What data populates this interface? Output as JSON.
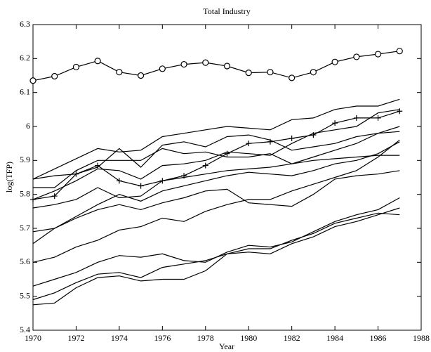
{
  "chart_data": {
    "type": "line",
    "title": "Total Industry",
    "xlabel": "Year",
    "ylabel": "log(TFP)",
    "x": [
      1970,
      1971,
      1972,
      1973,
      1974,
      1975,
      1976,
      1977,
      1978,
      1979,
      1980,
      1981,
      1982,
      1983,
      1984,
      1985,
      1986,
      1987
    ],
    "xlim": [
      1970,
      1988
    ],
    "xticks": [
      1970,
      1972,
      1974,
      1976,
      1978,
      1980,
      1982,
      1984,
      1986,
      1988
    ],
    "ylim": [
      5.4,
      6.3
    ],
    "yticks": [
      5.4,
      5.5,
      5.6,
      5.7,
      5.8,
      5.9,
      6,
      6.1,
      6.2,
      6.3
    ],
    "grid": false,
    "series": [
      {
        "color": "#000000",
        "marker": "o",
        "values": [
          6.135,
          6.148,
          6.175,
          6.193,
          6.16,
          6.15,
          6.17,
          6.183,
          6.188,
          6.178,
          6.158,
          6.16,
          6.143,
          6.16,
          6.19,
          6.205,
          6.213,
          6.222
        ]
      },
      {
        "color": "#000000",
        "marker": "+",
        "values": [
          5.785,
          5.795,
          5.86,
          5.885,
          5.84,
          5.825,
          5.84,
          5.855,
          5.885,
          5.92,
          5.95,
          5.955,
          5.965,
          5.975,
          6.01,
          6.025,
          6.025,
          6.045
        ]
      },
      {
        "color": "#000000",
        "values": [
          5.845,
          5.875,
          5.905,
          5.935,
          5.925,
          5.93,
          5.97,
          5.98,
          5.99,
          6.0,
          5.995,
          5.99,
          6.02,
          6.025,
          6.05,
          6.06,
          6.06,
          6.08
        ]
      },
      {
        "color": "#000000",
        "values": [
          5.845,
          5.855,
          5.86,
          5.88,
          5.935,
          5.88,
          5.945,
          5.955,
          5.94,
          5.97,
          5.975,
          5.96,
          5.93,
          5.94,
          5.95,
          5.97,
          5.98,
          6.0
        ]
      },
      {
        "color": "#000000",
        "values": [
          5.82,
          5.82,
          5.87,
          5.9,
          5.9,
          5.9,
          5.935,
          5.92,
          5.925,
          5.91,
          5.91,
          5.92,
          5.89,
          5.91,
          5.93,
          5.95,
          5.98,
          5.985
        ]
      },
      {
        "color": "#000000",
        "values": [
          5.785,
          5.81,
          5.84,
          5.875,
          5.87,
          5.845,
          5.885,
          5.89,
          5.9,
          5.925,
          5.92,
          5.915,
          5.95,
          5.98,
          5.99,
          6.0,
          6.04,
          6.05
        ]
      },
      {
        "color": "#000000",
        "values": [
          5.76,
          5.77,
          5.785,
          5.82,
          5.79,
          5.795,
          5.84,
          5.85,
          5.86,
          5.87,
          5.875,
          5.88,
          5.89,
          5.9,
          5.905,
          5.91,
          5.915,
          5.915
        ]
      },
      {
        "color": "#000000",
        "values": [
          5.69,
          5.7,
          5.73,
          5.755,
          5.77,
          5.755,
          5.775,
          5.79,
          5.81,
          5.815,
          5.775,
          5.77,
          5.765,
          5.8,
          5.845,
          5.855,
          5.86,
          5.87
        ]
      },
      {
        "color": "#000000",
        "values": [
          5.655,
          5.7,
          5.735,
          5.77,
          5.8,
          5.78,
          5.81,
          5.825,
          5.84,
          5.855,
          5.865,
          5.86,
          5.855,
          5.87,
          5.89,
          5.9,
          5.92,
          5.955
        ]
      },
      {
        "color": "#000000",
        "values": [
          5.6,
          5.615,
          5.645,
          5.665,
          5.695,
          5.705,
          5.73,
          5.72,
          5.75,
          5.77,
          5.785,
          5.785,
          5.81,
          5.83,
          5.85,
          5.87,
          5.91,
          5.96
        ]
      },
      {
        "color": "#000000",
        "values": [
          5.53,
          5.55,
          5.57,
          5.6,
          5.62,
          5.615,
          5.625,
          5.605,
          5.6,
          5.63,
          5.65,
          5.645,
          5.66,
          5.69,
          5.72,
          5.74,
          5.755,
          5.79
        ]
      },
      {
        "color": "#000000",
        "values": [
          5.49,
          5.51,
          5.54,
          5.565,
          5.57,
          5.555,
          5.585,
          5.595,
          5.605,
          5.625,
          5.64,
          5.64,
          5.665,
          5.685,
          5.715,
          5.73,
          5.745,
          5.74
        ]
      },
      {
        "color": "#000000",
        "values": [
          5.475,
          5.48,
          5.525,
          5.555,
          5.56,
          5.545,
          5.55,
          5.55,
          5.575,
          5.625,
          5.63,
          5.625,
          5.655,
          5.675,
          5.705,
          5.72,
          5.74,
          5.76
        ]
      }
    ]
  }
}
